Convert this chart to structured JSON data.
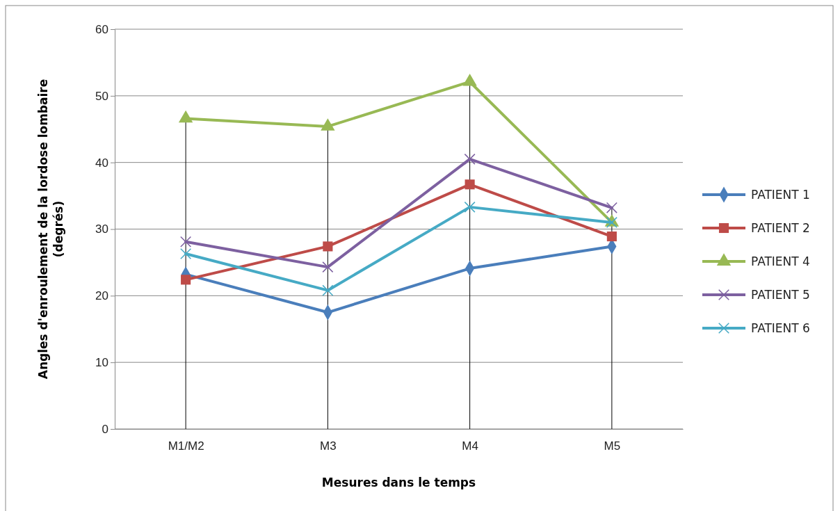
{
  "chart_data": {
    "type": "line",
    "xlabel": "Mesures dans le temps",
    "ylabel": "Angles d'enroulement de la lordose lombaire (degrés)",
    "categories": [
      "M1/M2",
      "M3",
      "M4",
      "M5"
    ],
    "series": [
      {
        "name": "PATIENT 1",
        "color": "#4a7ebb",
        "marker": "diamond",
        "values": [
          23.2,
          17.5,
          24.1,
          27.4
        ]
      },
      {
        "name": "PATIENT 2",
        "color": "#be4b48",
        "marker": "square",
        "values": [
          22.4,
          27.4,
          36.7,
          28.9
        ]
      },
      {
        "name": "PATIENT 4",
        "color": "#98b954",
        "marker": "triangle",
        "values": [
          46.6,
          45.4,
          52.1,
          31.0
        ]
      },
      {
        "name": "PATIENT 5",
        "color": "#7d60a0",
        "marker": "cross",
        "values": [
          28.1,
          24.3,
          40.5,
          33.2
        ]
      },
      {
        "name": "PATIENT 6",
        "color": "#46aac5",
        "marker": "cross",
        "values": [
          26.3,
          20.8,
          33.3,
          31.0
        ]
      }
    ],
    "ref_lines": [
      {
        "axis": "x",
        "value": "M1/M2",
        "color": "#000000"
      },
      {
        "axis": "x",
        "value": "M3",
        "color": "#000000"
      },
      {
        "axis": "x",
        "value": "M4",
        "color": "#000000"
      },
      {
        "axis": "x",
        "value": "M5",
        "color": "#000000"
      }
    ],
    "ylim": [
      0,
      60
    ],
    "yticks": [
      0,
      10,
      20,
      30,
      40,
      50,
      60
    ],
    "grid": "y",
    "legend": "right",
    "line_style": "solid"
  }
}
